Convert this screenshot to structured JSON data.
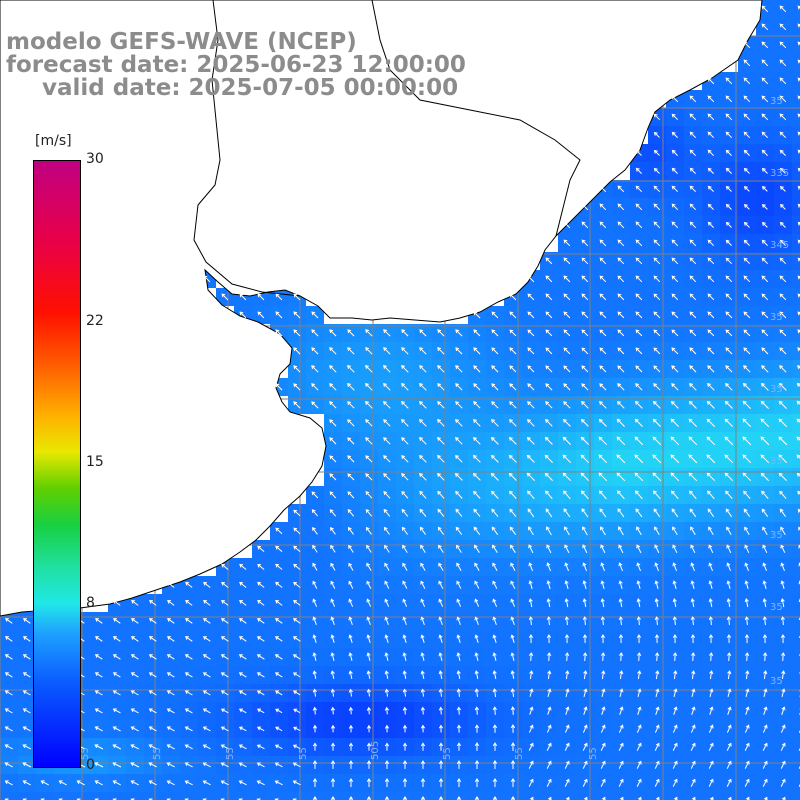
{
  "titles": {
    "model": "modelo GEFS-WAVE (NCEP)",
    "forecast_date": "forecast date: 2025-06-23 12:00:00",
    "valid_date": "valid date: 2025-07-05 00:00:00"
  },
  "colorbar": {
    "unit": "[m/s]",
    "tick_labels": [
      "30",
      "22",
      "15",
      "8",
      "0"
    ],
    "tick_values": [
      30,
      22,
      15,
      8,
      0
    ],
    "min": 0,
    "max": 30
  },
  "map": {
    "wind_speed_range_ms": [
      0,
      9
    ],
    "colors": {
      "land": "#ffffff",
      "gridline": "#808080",
      "coastline": "#000000",
      "arrow": "#ffffff"
    },
    "right_edge_labels": [
      "35",
      "335",
      "345",
      "35",
      "35",
      "35",
      "35",
      "35",
      "35"
    ],
    "bottom_edge_labels": [
      "55",
      "55",
      "55",
      "55",
      "505",
      "55",
      "55",
      "55"
    ]
  }
}
